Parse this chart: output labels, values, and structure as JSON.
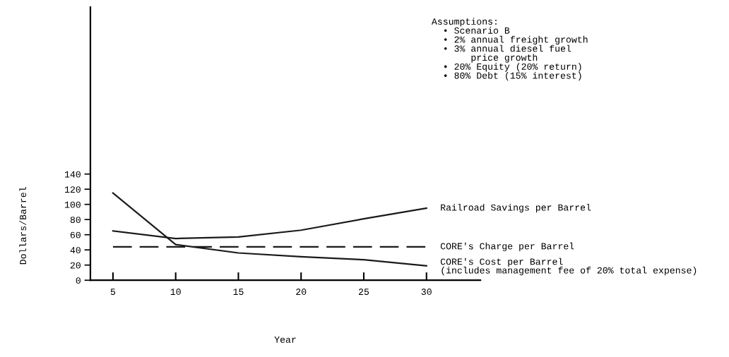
{
  "chart_data": {
    "type": "line",
    "xlabel": "Year",
    "ylabel": "Dollars/Barrel",
    "x": [
      5,
      10,
      15,
      20,
      25,
      30
    ],
    "series": [
      {
        "name": "Railroad Savings per Barrel",
        "color": "#1a1a1a",
        "values": [
          65,
          55,
          57,
          66,
          81,
          95
        ]
      },
      {
        "name": "CORE's Charge per Barrel",
        "color": "#1a1a1a",
        "x": [
          5,
          30
        ],
        "values": [
          44,
          44
        ],
        "line_style": "dashed"
      },
      {
        "name": "CORE's Cost per Barrel\n(includes management fee of 20% total expense)",
        "color": "#1a1a1a",
        "values": [
          115,
          47,
          36,
          31,
          27,
          19
        ]
      }
    ],
    "xlim": [
      3.2,
      34.3
    ],
    "ylim": [
      0,
      360
    ],
    "xticks": [
      5,
      10,
      15,
      20,
      25,
      30
    ],
    "yticks": [
      0,
      20,
      40,
      60,
      80,
      100,
      120,
      140
    ],
    "grid": false,
    "legend": false,
    "marker": "none",
    "line_style": "solid",
    "annotations": [
      "Assumptions:\n  • Scenario B\n  • 2% annual freight growth\n  • 3% annual diesel fuel\n       price growth\n  • 20% Equity (20% return)\n  • 80% Debt (15% interest)"
    ]
  }
}
